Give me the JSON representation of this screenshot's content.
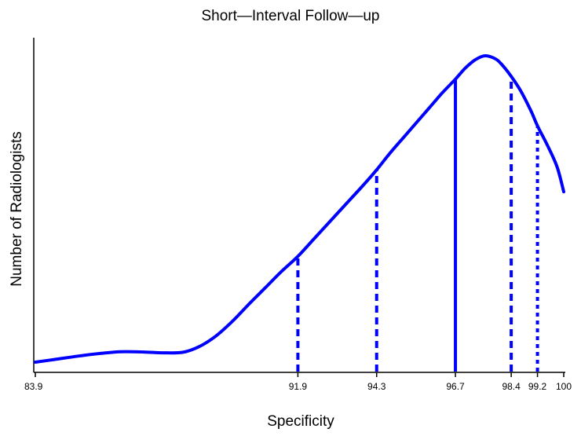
{
  "chart_data": {
    "type": "line",
    "title": "Short—Interval Follow—up",
    "xlabel": "Specificity",
    "ylabel": "Number of Radiologists",
    "xlim": [
      83.9,
      100
    ],
    "x_tick_labels": [
      "83.9",
      "91.9",
      "94.3",
      "96.7",
      "98.4",
      "99.2",
      "100"
    ],
    "series": [
      {
        "x": [
          83.9,
          84.5,
          85.2,
          85.9,
          86.5,
          87.2,
          87.8,
          88.4,
          88.9,
          89.4,
          89.9,
          90.4,
          90.9,
          91.4,
          91.9,
          92.4,
          92.9,
          93.4,
          93.9,
          94.3,
          94.7,
          95.1,
          95.5,
          95.9,
          96.3,
          96.7,
          97.0,
          97.3,
          97.6,
          97.9,
          98.1,
          98.4,
          98.7,
          99.0,
          99.2,
          99.5,
          99.8,
          100
        ],
        "y": [
          0.0,
          0.01,
          0.022,
          0.032,
          0.038,
          0.037,
          0.034,
          0.036,
          0.057,
          0.095,
          0.148,
          0.21,
          0.27,
          0.33,
          0.385,
          0.45,
          0.515,
          0.58,
          0.645,
          0.7,
          0.76,
          0.815,
          0.87,
          0.925,
          0.98,
          1.03,
          1.07,
          1.1,
          1.115,
          1.105,
          1.085,
          1.04,
          0.985,
          0.915,
          0.86,
          0.79,
          0.71,
          0.62
        ]
      }
    ],
    "reference_lines": [
      {
        "x": 91.9,
        "label": "91.9",
        "style": "dashed",
        "y_top": 0.385
      },
      {
        "x": 94.3,
        "label": "94.3",
        "style": "dashed",
        "y_top": 0.7
      },
      {
        "x": 96.7,
        "label": "96.7",
        "style": "solid",
        "y_top": 1.03
      },
      {
        "x": 98.4,
        "label": "98.4",
        "style": "dashed",
        "y_top": 1.04
      },
      {
        "x": 99.2,
        "label": "99.2",
        "style": "dotted",
        "y_top": 0.86
      }
    ],
    "color": "#0000ff",
    "grid": false,
    "legend": "none"
  }
}
